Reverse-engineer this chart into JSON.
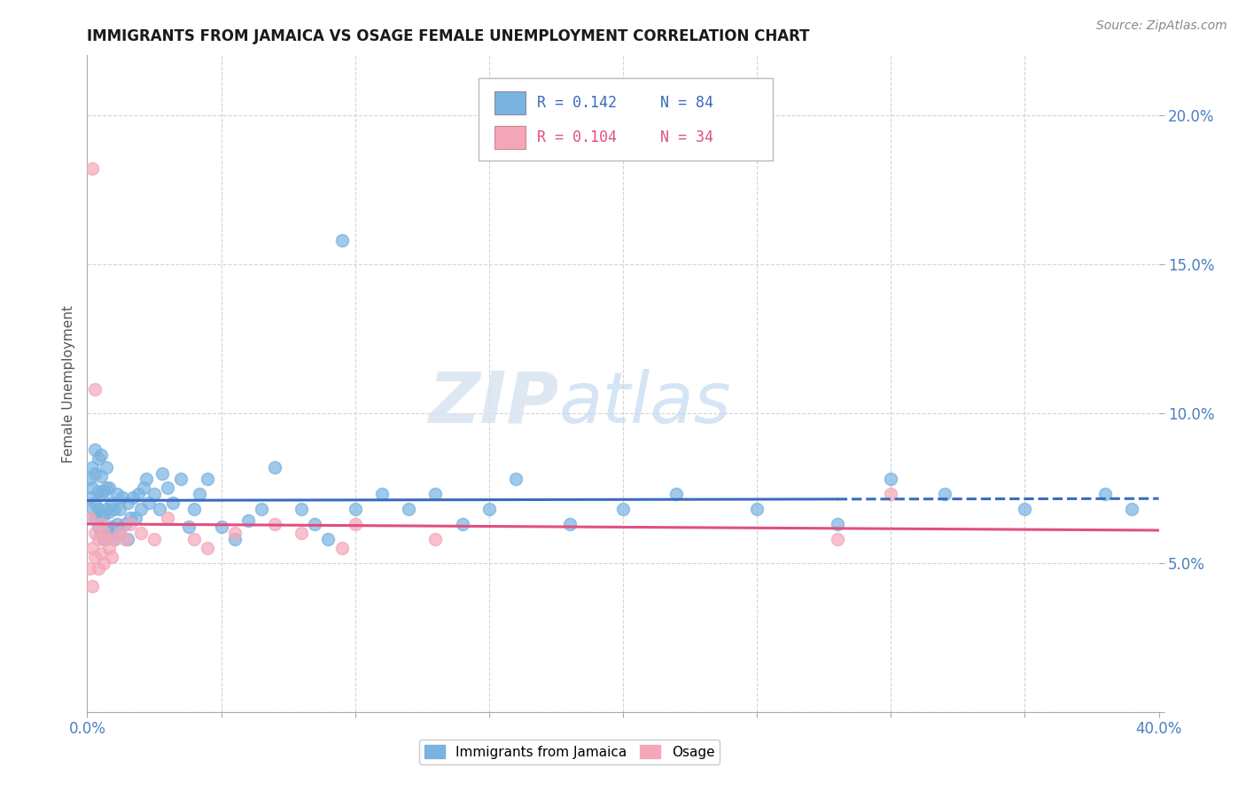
{
  "title": "IMMIGRANTS FROM JAMAICA VS OSAGE FEMALE UNEMPLOYMENT CORRELATION CHART",
  "source": "Source: ZipAtlas.com",
  "ylabel": "Female Unemployment",
  "xlim": [
    0.0,
    0.4
  ],
  "ylim": [
    0.0,
    0.22
  ],
  "xticks": [
    0.0,
    0.05,
    0.1,
    0.15,
    0.2,
    0.25,
    0.3,
    0.35,
    0.4
  ],
  "yticks": [
    0.0,
    0.05,
    0.1,
    0.15,
    0.2
  ],
  "blue_color": "#7ab3e0",
  "pink_color": "#f4a7b9",
  "trend_blue_color": "#3a6bbf",
  "trend_pink_color": "#e05080",
  "legend_R1": "R = 0.142",
  "legend_N1": "N = 84",
  "legend_R2": "R = 0.104",
  "legend_N2": "N = 34",
  "blue_scatter_x": [
    0.001,
    0.001,
    0.002,
    0.002,
    0.002,
    0.003,
    0.003,
    0.003,
    0.003,
    0.004,
    0.004,
    0.004,
    0.004,
    0.005,
    0.005,
    0.005,
    0.005,
    0.005,
    0.006,
    0.006,
    0.006,
    0.007,
    0.007,
    0.007,
    0.007,
    0.008,
    0.008,
    0.008,
    0.009,
    0.009,
    0.01,
    0.01,
    0.011,
    0.011,
    0.012,
    0.012,
    0.013,
    0.014,
    0.015,
    0.015,
    0.016,
    0.017,
    0.018,
    0.019,
    0.02,
    0.021,
    0.022,
    0.023,
    0.025,
    0.027,
    0.028,
    0.03,
    0.032,
    0.035,
    0.038,
    0.04,
    0.042,
    0.045,
    0.05,
    0.055,
    0.06,
    0.065,
    0.07,
    0.08,
    0.085,
    0.09,
    0.1,
    0.11,
    0.12,
    0.13,
    0.14,
    0.15,
    0.16,
    0.18,
    0.2,
    0.22,
    0.25,
    0.28,
    0.3,
    0.32,
    0.35,
    0.38,
    0.39,
    0.095
  ],
  "blue_scatter_y": [
    0.072,
    0.078,
    0.068,
    0.075,
    0.082,
    0.065,
    0.07,
    0.08,
    0.088,
    0.062,
    0.068,
    0.074,
    0.085,
    0.06,
    0.066,
    0.073,
    0.079,
    0.086,
    0.058,
    0.066,
    0.074,
    0.061,
    0.068,
    0.075,
    0.082,
    0.06,
    0.067,
    0.075,
    0.062,
    0.07,
    0.058,
    0.068,
    0.063,
    0.073,
    0.06,
    0.068,
    0.072,
    0.063,
    0.058,
    0.07,
    0.065,
    0.072,
    0.065,
    0.073,
    0.068,
    0.075,
    0.078,
    0.07,
    0.073,
    0.068,
    0.08,
    0.075,
    0.07,
    0.078,
    0.062,
    0.068,
    0.073,
    0.078,
    0.062,
    0.058,
    0.064,
    0.068,
    0.082,
    0.068,
    0.063,
    0.058,
    0.068,
    0.073,
    0.068,
    0.073,
    0.063,
    0.068,
    0.078,
    0.063,
    0.068,
    0.073,
    0.068,
    0.063,
    0.078,
    0.073,
    0.068,
    0.073,
    0.068,
    0.158
  ],
  "pink_scatter_x": [
    0.001,
    0.001,
    0.002,
    0.002,
    0.003,
    0.003,
    0.004,
    0.004,
    0.005,
    0.005,
    0.006,
    0.006,
    0.007,
    0.008,
    0.009,
    0.01,
    0.012,
    0.014,
    0.016,
    0.02,
    0.025,
    0.03,
    0.04,
    0.045,
    0.055,
    0.07,
    0.08,
    0.095,
    0.1,
    0.13,
    0.28,
    0.3,
    0.002,
    0.003
  ],
  "pink_scatter_y": [
    0.065,
    0.048,
    0.055,
    0.042,
    0.06,
    0.052,
    0.058,
    0.048,
    0.063,
    0.053,
    0.06,
    0.05,
    0.058,
    0.055,
    0.052,
    0.058,
    0.06,
    0.058,
    0.063,
    0.06,
    0.058,
    0.065,
    0.058,
    0.055,
    0.06,
    0.063,
    0.06,
    0.055,
    0.063,
    0.058,
    0.058,
    0.073,
    0.182,
    0.108
  ],
  "watermark_zip": "ZIP",
  "watermark_atlas": "atlas",
  "background_color": "#ffffff",
  "grid_color": "#d0d0d0"
}
